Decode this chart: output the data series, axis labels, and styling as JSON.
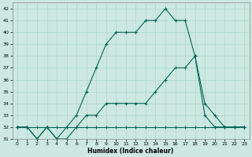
{
  "xlabel": "Humidex (Indice chaleur)",
  "xlim": [
    -0.5,
    23.5
  ],
  "ylim": [
    31,
    42.5
  ],
  "yticks": [
    31,
    32,
    33,
    34,
    35,
    36,
    37,
    38,
    39,
    40,
    41,
    42
  ],
  "xticks": [
    0,
    1,
    2,
    3,
    4,
    5,
    6,
    7,
    8,
    9,
    10,
    11,
    12,
    13,
    14,
    15,
    16,
    17,
    18,
    19,
    20,
    21,
    22,
    23
  ],
  "bg_color": "#cce8e0",
  "line_color": "#006655",
  "grid_color": "#b0d8cc",
  "lines": [
    {
      "x": [
        0,
        1,
        2,
        3,
        4,
        5,
        6,
        7,
        8,
        9,
        10,
        11,
        12,
        13,
        14,
        15,
        16,
        17,
        18,
        19,
        20,
        21,
        22,
        23
      ],
      "y": [
        32,
        32,
        32,
        32,
        32,
        32,
        32,
        32,
        32,
        32,
        32,
        32,
        32,
        32,
        32,
        32,
        32,
        32,
        32,
        32,
        32,
        32,
        32,
        32
      ]
    },
    {
      "x": [
        0,
        1,
        2,
        3,
        4,
        5,
        6,
        7,
        8,
        9,
        10,
        11,
        12,
        13,
        14,
        15,
        16,
        17,
        18,
        19,
        20,
        21,
        22,
        23
      ],
      "y": [
        32,
        32,
        31,
        32,
        31,
        31,
        32,
        33,
        33,
        34,
        34,
        34,
        34,
        34,
        35,
        36,
        37,
        37,
        38,
        34,
        33,
        32,
        32,
        32
      ]
    },
    {
      "x": [
        0,
        1,
        2,
        3,
        4,
        5,
        6,
        7,
        8,
        9,
        10,
        11,
        12,
        13,
        14,
        15,
        16,
        17,
        18,
        19,
        20,
        21,
        22,
        23
      ],
      "y": [
        32,
        32,
        31,
        32,
        31,
        32,
        33,
        35,
        37,
        39,
        40,
        40,
        40,
        41,
        41,
        42,
        41,
        41,
        38,
        33,
        32,
        32,
        32,
        32
      ]
    }
  ]
}
